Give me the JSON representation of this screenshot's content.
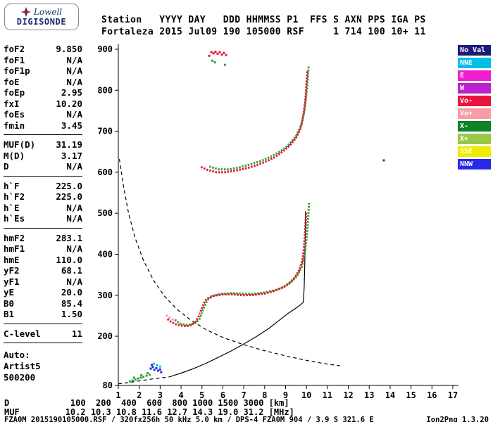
{
  "logo": {
    "name": "Lowell",
    "product": "DIGISONDE"
  },
  "header": {
    "line1": "Station   YYYY DAY   DDD HHMMSS P1  FFS S AXN PPS IGA PS",
    "line2": "Fortaleza 2015 Jul09 190 105000 RSF     1 714 100 10+ 11"
  },
  "params": {
    "groups": [
      {
        "rows": [
          [
            "foF2",
            "9.850"
          ],
          [
            "foF1",
            "N/A"
          ],
          [
            "foF1p",
            "N/A"
          ],
          [
            "foE",
            "N/A"
          ],
          [
            "foEp",
            "2.95"
          ],
          [
            "fxI",
            "10.20"
          ],
          [
            "foEs",
            "N/A"
          ],
          [
            "fmin",
            "3.45"
          ]
        ]
      },
      {
        "rows": [
          [
            "MUF(D)",
            "31.19"
          ],
          [
            "M(D)",
            "3.17"
          ],
          [
            "D",
            "N/A"
          ]
        ]
      },
      {
        "rows": [
          [
            "h`F",
            "225.0"
          ],
          [
            "h`F2",
            "225.0"
          ],
          [
            "h`E",
            "N/A"
          ],
          [
            "h`Es",
            "N/A"
          ]
        ]
      },
      {
        "rows": [
          [
            "hmF2",
            "283.1"
          ],
          [
            "hmF1",
            "N/A"
          ],
          [
            "hmE",
            "110.0"
          ],
          [
            "yF2",
            "68.1"
          ],
          [
            "yF1",
            "N/A"
          ],
          [
            "yE",
            "20.0"
          ],
          [
            "B0",
            "85.4"
          ],
          [
            "B1",
            "1.50"
          ]
        ]
      },
      {
        "rows": [
          [
            "C-level",
            "11"
          ]
        ]
      }
    ],
    "footer": [
      "Auto:",
      "Artist5",
      "500200"
    ]
  },
  "legend": {
    "items": [
      {
        "label": "No Val",
        "color": "#1c1c78"
      },
      {
        "label": "NNE",
        "color": "#00c0e8"
      },
      {
        "label": "E",
        "color": "#f020d0"
      },
      {
        "label": "W",
        "color": "#bb22cc"
      },
      {
        "label": "Vo-",
        "color": "#e8143c"
      },
      {
        "label": "Vo+",
        "color": "#f89ba4"
      },
      {
        "label": "X-",
        "color": "#0e8228"
      },
      {
        "label": "X+",
        "color": "#98c848"
      },
      {
        "label": "SSE",
        "color": "#eded00"
      },
      {
        "label": "NNW",
        "color": "#2828e8"
      }
    ]
  },
  "chart_data": {
    "type": "scatter",
    "title": "Fortaleza ionogram 2015 Jul09 190 105000",
    "x_unit": "MHz",
    "y_unit": "km",
    "xlim": [
      1,
      17
    ],
    "ylim": [
      80,
      900
    ],
    "x_ticks": [
      1,
      2,
      3,
      4,
      5,
      6,
      7,
      8,
      9,
      10,
      11,
      12,
      13,
      14,
      15,
      16,
      17
    ],
    "y_ticks": [
      900,
      800,
      700,
      600,
      500,
      400,
      300,
      200,
      80
    ],
    "series": [
      {
        "name": "F trace X-mode",
        "mode": "trace",
        "color": "#35a22f",
        "pts": [
          [
            3.7,
            240
          ],
          [
            3.95,
            231
          ],
          [
            4.2,
            228
          ],
          [
            4.45,
            228
          ],
          [
            4.7,
            233
          ],
          [
            4.9,
            243
          ],
          [
            5.05,
            264
          ],
          [
            5.25,
            288
          ],
          [
            5.5,
            298
          ],
          [
            5.9,
            303
          ],
          [
            6.4,
            305
          ],
          [
            6.9,
            304
          ],
          [
            7.4,
            303
          ],
          [
            7.9,
            306
          ],
          [
            8.4,
            311
          ],
          [
            8.9,
            319
          ],
          [
            9.25,
            331
          ],
          [
            9.55,
            347
          ],
          [
            9.78,
            370
          ],
          [
            9.92,
            402
          ],
          [
            10.0,
            438
          ],
          [
            10.04,
            460
          ],
          [
            10.08,
            490
          ],
          [
            10.11,
            515
          ],
          [
            10.13,
            528
          ]
        ]
      },
      {
        "name": "2nd hop X-mode",
        "mode": "trace",
        "color": "#35a22f",
        "pts": [
          [
            5.35,
            614
          ],
          [
            5.8,
            607
          ],
          [
            6.3,
            607
          ],
          [
            6.8,
            612
          ],
          [
            7.3,
            619
          ],
          [
            7.8,
            627
          ],
          [
            8.3,
            638
          ],
          [
            8.75,
            651
          ],
          [
            9.15,
            667
          ],
          [
            9.5,
            688
          ],
          [
            9.75,
            714
          ],
          [
            9.92,
            755
          ],
          [
            10.03,
            808
          ],
          [
            10.1,
            858
          ]
        ]
      },
      {
        "name": "F trace O-mode",
        "mode": "trace",
        "color": "#e8143c",
        "pts": [
          [
            3.35,
            242
          ],
          [
            3.5,
            236
          ],
          [
            3.7,
            230
          ],
          [
            3.9,
            227
          ],
          [
            4.1,
            225
          ],
          [
            4.3,
            225
          ],
          [
            4.5,
            228
          ],
          [
            4.7,
            235
          ],
          [
            4.85,
            249
          ],
          [
            5.0,
            269
          ],
          [
            5.15,
            287
          ],
          [
            5.35,
            295
          ],
          [
            5.6,
            299
          ],
          [
            6.0,
            302
          ],
          [
            6.5,
            302
          ],
          [
            7.0,
            300
          ],
          [
            7.5,
            301
          ],
          [
            8.0,
            304
          ],
          [
            8.5,
            311
          ],
          [
            8.9,
            320
          ],
          [
            9.2,
            331
          ],
          [
            9.45,
            344
          ],
          [
            9.65,
            361
          ],
          [
            9.8,
            384
          ],
          [
            9.88,
            414
          ],
          [
            9.9,
            430
          ],
          [
            9.94,
            460
          ],
          [
            9.96,
            480
          ],
          [
            9.98,
            500
          ]
        ]
      },
      {
        "name": "2nd hop O-mode",
        "mode": "trace",
        "color": "#e8143c",
        "pts": [
          [
            4.95,
            613
          ],
          [
            5.3,
            605
          ],
          [
            5.7,
            600
          ],
          [
            6.1,
            600
          ],
          [
            6.5,
            603
          ],
          [
            6.9,
            607
          ],
          [
            7.3,
            612
          ],
          [
            7.7,
            619
          ],
          [
            8.1,
            627
          ],
          [
            8.5,
            637
          ],
          [
            8.85,
            650
          ],
          [
            9.2,
            665
          ],
          [
            9.5,
            684
          ],
          [
            9.7,
            705
          ],
          [
            9.85,
            737
          ],
          [
            9.95,
            778
          ],
          [
            10.0,
            818
          ],
          [
            10.04,
            850
          ]
        ]
      },
      {
        "name": "3rd hop fragments O",
        "mode": "dots",
        "color": "#e8143c",
        "pts": [
          [
            5.35,
            884
          ],
          [
            5.45,
            893
          ],
          [
            5.55,
            890
          ],
          [
            5.65,
            894
          ],
          [
            5.75,
            889
          ],
          [
            5.85,
            893
          ],
          [
            5.95,
            887
          ],
          [
            6.05,
            891
          ],
          [
            6.15,
            886
          ]
        ]
      },
      {
        "name": "3rd hop fragments X",
        "mode": "dots",
        "color": "#35a22f",
        "pts": [
          [
            5.5,
            872
          ],
          [
            5.62,
            868
          ],
          [
            6.1,
            862
          ]
        ]
      },
      {
        "name": "E-region echoes X+",
        "mode": "dots",
        "color": "#35a22f",
        "pts": [
          [
            1.55,
            90
          ],
          [
            1.68,
            92
          ],
          [
            1.82,
            94
          ],
          [
            1.95,
            97
          ],
          [
            2.08,
            99
          ],
          [
            2.2,
            101
          ],
          [
            2.35,
            104
          ],
          [
            2.5,
            106
          ],
          [
            1.75,
            99
          ],
          [
            2.1,
            105
          ],
          [
            2.4,
            110
          ]
        ]
      },
      {
        "name": "E-region echoes NNW",
        "mode": "dots",
        "color": "#2828e8",
        "pts": [
          [
            2.55,
            121
          ],
          [
            2.65,
            125
          ],
          [
            2.72,
            118
          ],
          [
            2.82,
            122
          ],
          [
            2.9,
            116
          ],
          [
            3.0,
            119
          ],
          [
            2.6,
            130
          ],
          [
            3.05,
            112
          ]
        ]
      },
      {
        "name": "E-region echoes NNE",
        "mode": "dots",
        "color": "#00c0e8",
        "pts": [
          [
            2.7,
            133
          ],
          [
            2.85,
            129
          ],
          [
            3.0,
            126
          ]
        ]
      },
      {
        "name": "stray echo NNW",
        "mode": "dots",
        "color": "#2828e8",
        "pts": [
          [
            13.7,
            629
          ]
        ]
      },
      {
        "name": "near-trace Vo+",
        "mode": "dots",
        "color": "#f89ba4",
        "pts": [
          [
            3.32,
            250
          ],
          [
            3.45,
            245
          ],
          [
            3.6,
            241
          ],
          [
            4.95,
            255
          ]
        ]
      }
    ],
    "lines": [
      {
        "name": "profile-extrapolated-bottom",
        "style": "dashed",
        "color": "#000000",
        "pts": [
          [
            1.0,
            84
          ],
          [
            1.5,
            87
          ],
          [
            2.0,
            91
          ],
          [
            2.5,
            95
          ],
          [
            3.0,
            98
          ],
          [
            3.45,
            101
          ]
        ]
      },
      {
        "name": "muf-transmission-curve",
        "style": "dashed",
        "color": "#000000",
        "pts": [
          [
            1.05,
            632
          ],
          [
            1.25,
            565
          ],
          [
            1.5,
            498
          ],
          [
            1.8,
            440
          ],
          [
            2.2,
            385
          ],
          [
            2.7,
            335
          ],
          [
            3.2,
            298
          ],
          [
            3.8,
            266
          ],
          [
            4.5,
            238
          ],
          [
            5.2,
            216
          ],
          [
            6.0,
            197
          ],
          [
            6.9,
            181
          ],
          [
            7.9,
            166
          ],
          [
            9.0,
            152
          ],
          [
            10.0,
            141
          ],
          [
            11.0,
            132
          ],
          [
            11.6,
            128
          ]
        ]
      },
      {
        "name": "true-height-profile",
        "style": "solid",
        "color": "#000000",
        "pts": [
          [
            3.45,
            101
          ],
          [
            4.0,
            110
          ],
          [
            4.6,
            121
          ],
          [
            5.2,
            134
          ],
          [
            5.8,
            149
          ],
          [
            6.4,
            164
          ],
          [
            7.0,
            181
          ],
          [
            7.6,
            199
          ],
          [
            8.2,
            219
          ],
          [
            8.7,
            239
          ],
          [
            9.1,
            255
          ],
          [
            9.45,
            267
          ],
          [
            9.7,
            276
          ],
          [
            9.85,
            283
          ],
          [
            9.89,
            320
          ],
          [
            9.92,
            380
          ],
          [
            9.94,
            440
          ],
          [
            9.95,
            505
          ]
        ]
      }
    ]
  },
  "bottom": {
    "d_row": "D            100  200  400  600  800 1000 1500 3000 [km]",
    "muf_row": "MUF         10.2 10.3 10.8 11.6 12.7 14.3 19.0 31.2 [MHz]",
    "file_info": "FZA0M_2015190105000.RSF / 320fx256h 50 kHz 5.0 km / DPS-4 FZA0M 904 / 3.9 S 321.6 E",
    "version": "Ion2Png 1.3.20"
  }
}
